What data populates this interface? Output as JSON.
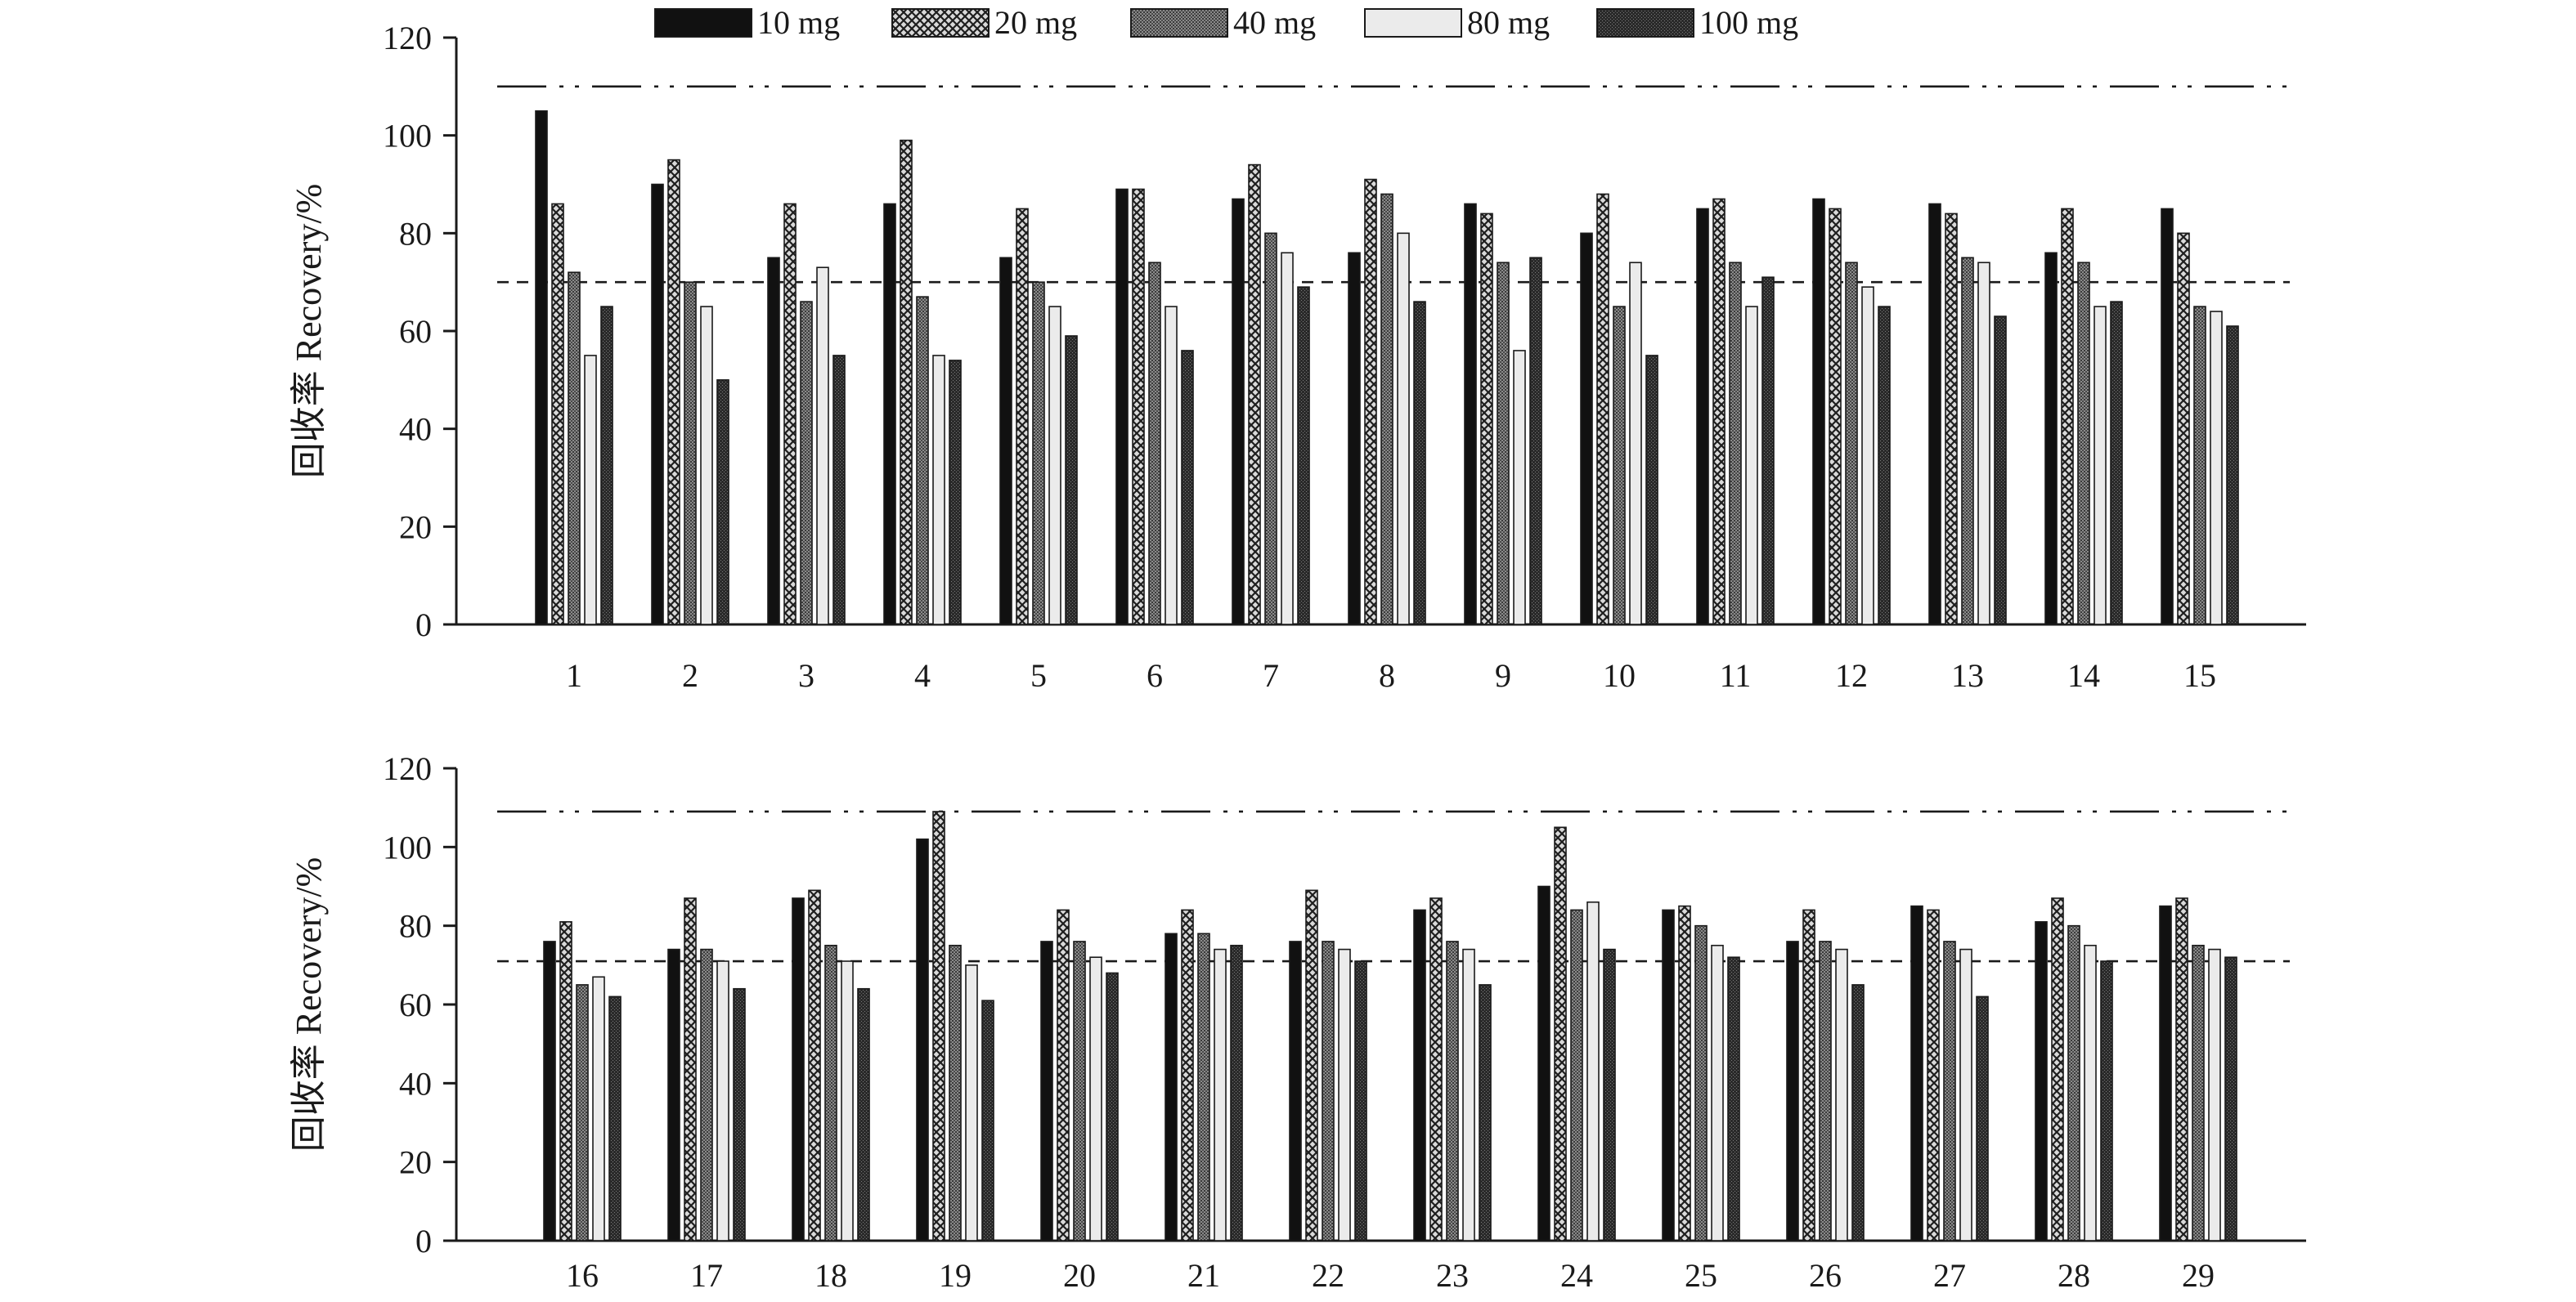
{
  "legend": {
    "items": [
      {
        "label": "10 mg",
        "pattern": "solid-black"
      },
      {
        "label": "20 mg",
        "pattern": "crosshatch"
      },
      {
        "label": "40 mg",
        "pattern": "dense-dot"
      },
      {
        "label": "80 mg",
        "pattern": "light-gray"
      },
      {
        "label": "100 mg",
        "pattern": "dark-dot"
      }
    ]
  },
  "colors": {
    "axis": "#1a1a1a",
    "solid_black": "#111111",
    "light_gray": "#ebebeb",
    "medium_gray": "#6a6a6a",
    "dark_gray": "#333333"
  },
  "chart_data": [
    {
      "type": "bar",
      "xlabel": "",
      "ylabel": "回收率 Recovery/%",
      "ylim": [
        0,
        120
      ],
      "yticks": [
        "0",
        "20",
        "40",
        "60",
        "80",
        "100",
        "120"
      ],
      "categories": [
        "1",
        "2",
        "3",
        "4",
        "5",
        "6",
        "7",
        "8",
        "9",
        "10",
        "11",
        "12",
        "13",
        "14",
        "15"
      ],
      "reference_lines": [
        {
          "value": 110,
          "style": "dash-dot-dot"
        },
        {
          "value": 70,
          "style": "dashed"
        }
      ],
      "series": [
        {
          "name": "10 mg",
          "values": [
            105,
            90,
            75,
            86,
            75,
            89,
            87,
            76,
            86,
            80,
            85,
            87,
            86,
            76,
            85
          ]
        },
        {
          "name": "20 mg",
          "values": [
            86,
            95,
            86,
            99,
            85,
            89,
            94,
            91,
            84,
            88,
            87,
            85,
            84,
            85,
            80
          ]
        },
        {
          "name": "40 mg",
          "values": [
            72,
            70,
            66,
            67,
            70,
            74,
            80,
            88,
            74,
            65,
            74,
            74,
            75,
            74,
            65
          ]
        },
        {
          "name": "80 mg",
          "values": [
            55,
            65,
            73,
            55,
            65,
            65,
            76,
            80,
            56,
            74,
            65,
            69,
            74,
            65,
            64
          ]
        },
        {
          "name": "100 mg",
          "values": [
            65,
            50,
            55,
            54,
            59,
            56,
            69,
            66,
            75,
            55,
            71,
            65,
            63,
            66,
            61
          ]
        }
      ]
    },
    {
      "type": "bar",
      "xlabel": "",
      "ylabel": "回收率 Recovery/%",
      "ylim": [
        0,
        120
      ],
      "yticks": [
        "0",
        "20",
        "40",
        "60",
        "80",
        "100",
        "120"
      ],
      "categories": [
        "16",
        "17",
        "18",
        "19",
        "20",
        "21",
        "22",
        "23",
        "24",
        "25",
        "26",
        "27",
        "28",
        "29"
      ],
      "reference_lines": [
        {
          "value": 109,
          "style": "dash-dot-dot"
        },
        {
          "value": 71,
          "style": "dashed"
        }
      ],
      "series": [
        {
          "name": "10 mg",
          "values": [
            76,
            74,
            87,
            102,
            76,
            78,
            76,
            84,
            90,
            84,
            76,
            85,
            81,
            85
          ]
        },
        {
          "name": "20 mg",
          "values": [
            81,
            87,
            89,
            109,
            84,
            84,
            89,
            87,
            105,
            85,
            84,
            84,
            87,
            87
          ]
        },
        {
          "name": "40 mg",
          "values": [
            65,
            74,
            75,
            75,
            76,
            78,
            76,
            76,
            84,
            80,
            76,
            76,
            80,
            75
          ]
        },
        {
          "name": "80 mg",
          "values": [
            67,
            71,
            71,
            70,
            72,
            74,
            74,
            74,
            86,
            75,
            74,
            74,
            75,
            74
          ]
        },
        {
          "name": "100 mg",
          "values": [
            62,
            64,
            64,
            61,
            68,
            75,
            71,
            65,
            74,
            72,
            65,
            62,
            71,
            72
          ]
        }
      ]
    }
  ]
}
